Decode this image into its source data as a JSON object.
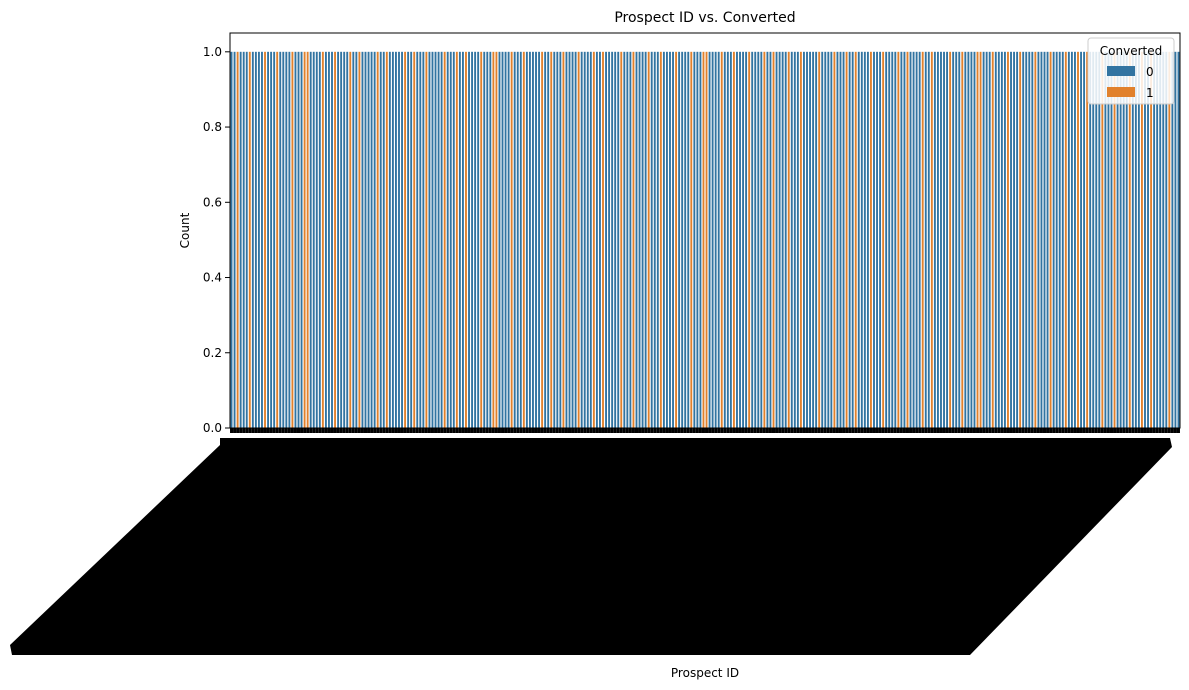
{
  "chart_data": {
    "type": "bar",
    "title": "Prospect ID vs. Converted",
    "xlabel": "Prospect ID",
    "ylabel": "Count",
    "ylim": [
      0,
      1.05
    ],
    "yticks": [
      0.0,
      0.2,
      0.4,
      0.6,
      0.8,
      1.0
    ],
    "ytick_labels": [
      "0.0",
      "0.2",
      "0.4",
      "0.6",
      "0.8",
      "1.0"
    ],
    "legend": {
      "title": "Converted",
      "placement": "top-right",
      "entries": [
        {
          "label": "0",
          "color": "#3274a1"
        },
        {
          "label": "1",
          "color": "#e1812c"
        }
      ]
    },
    "series": [
      {
        "name": "0",
        "color": "#3274a1"
      },
      {
        "name": "1",
        "color": "#e1812c"
      }
    ],
    "bar_value": 1.0,
    "x_tick_labels_overlapping": true,
    "converted_values": [
      0,
      0,
      1,
      0,
      0,
      0,
      1,
      0,
      0,
      0,
      0,
      1,
      0,
      0,
      0,
      1,
      0,
      0,
      0,
      0,
      1,
      0,
      0,
      0,
      1,
      1,
      0,
      0,
      0,
      0,
      1,
      0,
      0,
      0,
      1,
      0,
      0,
      0,
      0,
      1,
      0,
      0,
      1,
      0,
      0,
      0,
      0,
      0,
      1,
      0,
      0,
      1,
      0,
      0,
      0,
      0,
      0,
      1,
      0,
      0,
      1,
      0,
      0,
      0,
      1,
      0,
      0,
      0,
      0,
      0,
      1,
      0,
      0,
      0,
      1,
      0,
      0,
      1,
      0,
      0,
      0,
      0,
      1,
      0,
      0,
      0,
      1,
      1,
      0,
      0,
      0,
      0,
      1,
      0,
      0,
      0,
      1,
      0,
      0,
      0,
      0,
      0,
      1,
      0,
      0,
      1,
      0,
      0,
      0,
      1,
      0,
      0,
      0,
      0,
      1,
      0,
      0,
      0,
      0,
      1,
      0,
      0,
      1,
      0,
      0,
      0,
      0,
      0,
      1,
      0,
      0,
      0,
      1,
      0,
      0,
      0,
      0,
      1,
      0,
      0,
      0,
      1,
      0,
      0,
      0,
      0,
      1,
      0,
      0,
      0,
      0,
      1,
      0,
      0,
      0,
      1,
      1,
      0,
      0,
      0,
      0,
      1,
      0,
      0,
      0,
      1,
      0,
      0,
      0,
      0,
      1,
      0,
      0,
      0,
      0,
      1,
      0,
      0,
      1,
      0,
      0,
      0,
      0,
      1,
      0,
      0,
      0,
      1,
      0,
      0,
      0,
      0,
      0,
      1,
      0,
      0,
      0,
      0,
      1,
      0,
      0,
      0,
      1,
      0,
      0,
      1,
      0,
      0,
      0,
      0,
      1,
      0,
      0,
      0,
      1,
      0,
      0,
      0,
      0,
      1,
      0,
      0,
      1,
      0,
      0,
      0,
      0,
      1,
      0,
      0,
      1,
      0,
      0,
      0,
      0,
      0,
      1,
      0,
      0,
      0,
      1,
      0,
      0,
      0,
      0,
      1,
      1,
      0,
      0,
      0,
      1,
      0,
      0,
      0,
      0,
      1,
      0,
      0,
      0,
      1,
      0,
      0,
      0,
      0,
      1,
      0,
      0,
      0,
      0,
      1,
      0,
      0,
      0,
      0,
      1,
      0,
      0,
      0,
      1,
      0,
      0,
      1,
      0,
      0,
      0,
      0,
      1,
      0,
      0,
      0,
      1,
      0,
      0,
      0,
      0,
      1,
      0,
      0,
      0,
      1,
      0,
      0,
      1,
      0,
      0,
      0,
      0,
      0,
      1,
      0,
      0,
      0
    ]
  }
}
